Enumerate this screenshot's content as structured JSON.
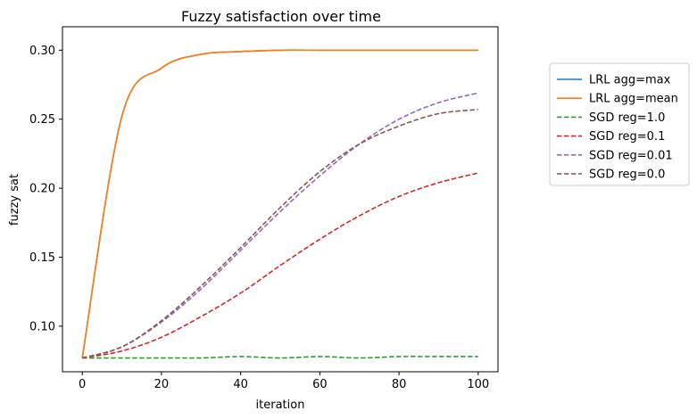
{
  "chart_data": {
    "type": "line",
    "title": "Fuzzy satisfaction over time",
    "xlabel": "iteration",
    "ylabel": "fuzzy sat",
    "xlim": [
      -5,
      105
    ],
    "ylim": [
      0.067,
      0.317
    ],
    "xticks": [
      0,
      20,
      40,
      60,
      80,
      100
    ],
    "xtick_labels": [
      "0",
      "20",
      "40",
      "60",
      "80",
      "100"
    ],
    "yticks": [
      0.1,
      0.15,
      0.2,
      0.25,
      0.3
    ],
    "ytick_labels": [
      "0.10",
      "0.15",
      "0.20",
      "0.25",
      "0.30"
    ],
    "grid": false,
    "legend_position": "outside-right",
    "x": [
      0,
      10,
      20,
      30,
      40,
      50,
      60,
      70,
      80,
      90,
      100
    ],
    "series": [
      {
        "name": "LRL agg=max",
        "color": "#1f77b4",
        "style": "solid",
        "values": [
          0.077,
          0.252,
          0.287,
          0.297,
          0.299,
          0.3,
          0.3,
          0.3,
          0.3,
          0.3,
          0.3
        ]
      },
      {
        "name": "LRL agg=mean",
        "color": "#ff7f0e",
        "style": "solid",
        "values": [
          0.077,
          0.252,
          0.287,
          0.297,
          0.299,
          0.3,
          0.3,
          0.3,
          0.3,
          0.3,
          0.3
        ]
      },
      {
        "name": "SGD reg=1.0",
        "color": "#2ca02c",
        "style": "dashed",
        "values": [
          0.077,
          0.077,
          0.077,
          0.077,
          0.078,
          0.077,
          0.078,
          0.077,
          0.078,
          0.078,
          0.078
        ]
      },
      {
        "name": "SGD reg=0.1",
        "color": "#d62728",
        "style": "dashed",
        "values": [
          0.077,
          0.082,
          0.092,
          0.107,
          0.124,
          0.144,
          0.163,
          0.18,
          0.194,
          0.204,
          0.211
        ]
      },
      {
        "name": "SGD reg=0.01",
        "color": "#9467bd",
        "style": "dashed",
        "values": [
          0.077,
          0.085,
          0.103,
          0.127,
          0.155,
          0.183,
          0.209,
          0.232,
          0.25,
          0.262,
          0.269
        ]
      },
      {
        "name": "SGD reg=0.0",
        "color": "#8c564b",
        "style": "dashed",
        "values": [
          0.077,
          0.085,
          0.104,
          0.129,
          0.157,
          0.186,
          0.212,
          0.232,
          0.245,
          0.254,
          0.257
        ]
      }
    ]
  }
}
